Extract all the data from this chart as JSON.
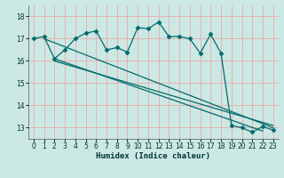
{
  "xlabel": "Humidex (Indice chaleur)",
  "xlim": [
    -0.5,
    23.5
  ],
  "ylim": [
    12.5,
    18.5
  ],
  "xticks": [
    0,
    1,
    2,
    3,
    4,
    5,
    6,
    7,
    8,
    9,
    10,
    11,
    12,
    13,
    14,
    15,
    16,
    17,
    18,
    19,
    20,
    21,
    22,
    23
  ],
  "yticks": [
    13,
    14,
    15,
    16,
    17,
    18
  ],
  "bg_color": "#cce8e4",
  "line_color": "#006b6b",
  "grid_color": "#e8aaaa",
  "main_line": {
    "x": [
      0,
      1,
      2,
      3,
      4,
      5,
      6,
      7,
      8,
      9,
      10,
      11,
      12,
      13,
      14,
      15,
      16,
      17,
      18,
      19,
      20,
      21,
      22,
      23
    ],
    "y": [
      17.0,
      17.1,
      16.1,
      16.5,
      17.0,
      17.25,
      17.35,
      16.5,
      16.6,
      16.4,
      17.5,
      17.45,
      17.75,
      17.1,
      17.1,
      17.0,
      16.35,
      17.2,
      16.35,
      13.1,
      13.0,
      12.8,
      13.05,
      12.9
    ]
  },
  "straight_lines": [
    {
      "x": [
        1,
        23
      ],
      "y": [
        17.0,
        13.0
      ]
    },
    {
      "x": [
        2,
        22
      ],
      "y": [
        16.1,
        12.85
      ]
    },
    {
      "x": [
        2,
        23
      ],
      "y": [
        16.0,
        13.1
      ]
    }
  ]
}
